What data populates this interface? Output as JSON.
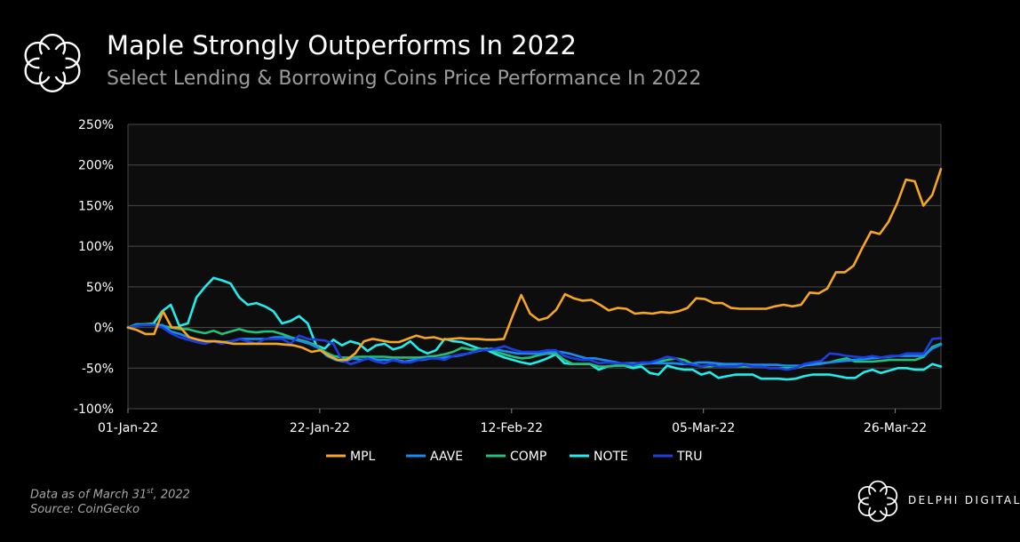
{
  "header": {
    "title": "Maple Strongly Outperforms In 2022",
    "subtitle": "Select Lending & Borrowing Coins Price Performance In 2022"
  },
  "footnote": {
    "line1_prefix": "Data as of March 31",
    "line1_sup": "st",
    "line1_suffix": ", 2022",
    "line2": "Source:  CoinGecko"
  },
  "brand": {
    "name": "DELPHI DIGITAL"
  },
  "colors": {
    "background": "#000000",
    "plot_bg": "#0d0d0d",
    "grid": "#4a4a4a",
    "MPL": "#f5a623",
    "AAVE": "#1a8cf0",
    "COMP": "#22c07a",
    "NOTE": "#23ecec",
    "TRU": "#1f3ee0"
  },
  "chart_data": {
    "type": "line",
    "title": "Maple Strongly Outperforms In 2022",
    "subtitle": "Select Lending & Borrowing Coins Price Performance In 2022",
    "x_start": "2022-01-01",
    "x_end": "2022-03-31",
    "x_ticks": [
      {
        "date": "2022-01-01",
        "label": "01-Jan-22"
      },
      {
        "date": "2022-01-22",
        "label": "22-Jan-22"
      },
      {
        "date": "2022-02-12",
        "label": "12-Feb-22"
      },
      {
        "date": "2022-03-05",
        "label": "05-Mar-22"
      },
      {
        "date": "2022-03-26",
        "label": "26-Mar-22"
      }
    ],
    "y_ticks": [
      {
        "value": -100,
        "label": "-100%"
      },
      {
        "value": -50,
        "label": "-50%"
      },
      {
        "value": 0,
        "label": "0%"
      },
      {
        "value": 50,
        "label": "50%"
      },
      {
        "value": 100,
        "label": "100%"
      },
      {
        "value": 150,
        "label": "150%"
      },
      {
        "value": 200,
        "label": "200%"
      },
      {
        "value": 250,
        "label": "250%"
      }
    ],
    "ylim": [
      -100,
      250
    ],
    "y_unit": "%",
    "grid": "horizontal",
    "legend_position": "bottom",
    "series": [
      {
        "name": "MPL",
        "values": [
          0,
          -3,
          -8,
          -8,
          20,
          0,
          0,
          -12,
          -15,
          -17,
          -17,
          -18,
          -20,
          -20,
          -20,
          -20,
          -20,
          -20,
          -21,
          -22,
          -25,
          -30,
          -28,
          -35,
          -40,
          -40,
          -32,
          -17,
          -14,
          -16,
          -18,
          -18,
          -14,
          -10,
          -13,
          -12,
          -15,
          -14,
          -13,
          -14,
          -14,
          -15,
          -15,
          -14,
          14,
          40,
          17,
          9,
          12,
          22,
          41,
          36,
          33,
          34,
          28,
          21,
          24,
          23,
          17,
          18,
          17,
          19,
          18,
          20,
          24,
          36,
          35,
          30,
          30,
          24,
          23,
          23,
          23,
          23,
          26,
          28,
          26,
          28,
          43,
          42,
          48,
          68,
          68,
          76,
          98,
          118,
          115,
          130,
          153,
          182,
          180,
          150,
          163,
          195
        ]
      },
      {
        "name": "AAVE",
        "values": [
          0,
          3,
          3,
          3,
          3,
          -5,
          -8,
          -12,
          -15,
          -17,
          -17,
          -18,
          -17,
          -14,
          -14,
          -14,
          -14,
          -12,
          -12,
          -14,
          -17,
          -20,
          -25,
          -35,
          -40,
          -42,
          -38,
          -40,
          -38,
          -40,
          -40,
          -40,
          -42,
          -40,
          -40,
          -38,
          -38,
          -36,
          -35,
          -33,
          -30,
          -28,
          -26,
          -28,
          -30,
          -32,
          -32,
          -32,
          -32,
          -30,
          -30,
          -32,
          -35,
          -38,
          -38,
          -40,
          -42,
          -44,
          -44,
          -44,
          -44,
          -44,
          -44,
          -44,
          -45,
          -45,
          -43,
          -43,
          -44,
          -45,
          -45,
          -45,
          -46,
          -46,
          -46,
          -46,
          -47,
          -47,
          -47,
          -46,
          -45,
          -43,
          -42,
          -41,
          -40,
          -39,
          -38,
          -37,
          -36,
          -35,
          -35,
          -35,
          -35,
          -26,
          -21
        ]
      },
      {
        "name": "COMP",
        "values": [
          0,
          4,
          4,
          4,
          2,
          0,
          -2,
          -2,
          -5,
          -7,
          -4,
          -8,
          -5,
          -2,
          -5,
          -6,
          -5,
          -5,
          -8,
          -12,
          -15,
          -18,
          -22,
          -30,
          -35,
          -37,
          -37,
          -36,
          -36,
          -36,
          -36,
          -37,
          -37,
          -37,
          -37,
          -36,
          -35,
          -33,
          -30,
          -25,
          -27,
          -27,
          -26,
          -30,
          -33,
          -36,
          -38,
          -37,
          -34,
          -32,
          -32,
          -40,
          -45,
          -45,
          -45,
          -48,
          -48,
          -47,
          -47,
          -47,
          -45,
          -44,
          -42,
          -40,
          -38,
          -40,
          -45,
          -48,
          -48,
          -47,
          -48,
          -48,
          -48,
          -48,
          -48,
          -50,
          -50,
          -50,
          -50,
          -47,
          -45,
          -44,
          -43,
          -40,
          -38,
          -42,
          -42,
          -42,
          -41,
          -40,
          -40,
          -40,
          -40,
          -36,
          -24,
          -20
        ]
      },
      {
        "name": "NOTE",
        "values": [
          0,
          2,
          4,
          5,
          20,
          28,
          2,
          5,
          37,
          50,
          61,
          58,
          54,
          37,
          28,
          30,
          26,
          20,
          5,
          8,
          14,
          5,
          -22,
          -26,
          -15,
          -22,
          -17,
          -20,
          -29,
          -22,
          -20,
          -27,
          -24,
          -17,
          -27,
          -32,
          -28,
          -14,
          -17,
          -18,
          -22,
          -26,
          -28,
          -33,
          -37,
          -40,
          -43,
          -45,
          -42,
          -38,
          -33,
          -44,
          -45,
          -45,
          -45,
          -52,
          -48,
          -47,
          -47,
          -50,
          -48,
          -56,
          -58,
          -47,
          -50,
          -52,
          -52,
          -58,
          -55,
          -62,
          -60,
          -58,
          -58,
          -58,
          -63,
          -63,
          -63,
          -64,
          -63,
          -60,
          -58,
          -58,
          -58,
          -60,
          -62,
          -62,
          -55,
          -52,
          -56,
          -53,
          -50,
          -50,
          -52,
          -52,
          -45,
          -48
        ]
      },
      {
        "name": "TRU",
        "values": [
          0,
          2,
          3,
          3,
          0,
          -7,
          -12,
          -15,
          -18,
          -20,
          -17,
          -20,
          -17,
          -14,
          -17,
          -20,
          -14,
          -14,
          -14,
          -20,
          -10,
          -14,
          -15,
          -16,
          -20,
          -40,
          -45,
          -42,
          -38,
          -42,
          -44,
          -40,
          -43,
          -43,
          -40,
          -38,
          -38,
          -40,
          -35,
          -33,
          -32,
          -28,
          -28,
          -26,
          -23,
          -27,
          -30,
          -30,
          -30,
          -28,
          -28,
          -35,
          -38,
          -40,
          -40,
          -44,
          -43,
          -44,
          -44,
          -46,
          -43,
          -43,
          -40,
          -36,
          -38,
          -44,
          -46,
          -48,
          -46,
          -48,
          -48,
          -48,
          -46,
          -48,
          -48,
          -50,
          -50,
          -52,
          -50,
          -45,
          -43,
          -41,
          -32,
          -33,
          -35,
          -36,
          -37,
          -35,
          -37,
          -35,
          -35,
          -32,
          -32,
          -32,
          -14,
          -13
        ]
      }
    ]
  }
}
